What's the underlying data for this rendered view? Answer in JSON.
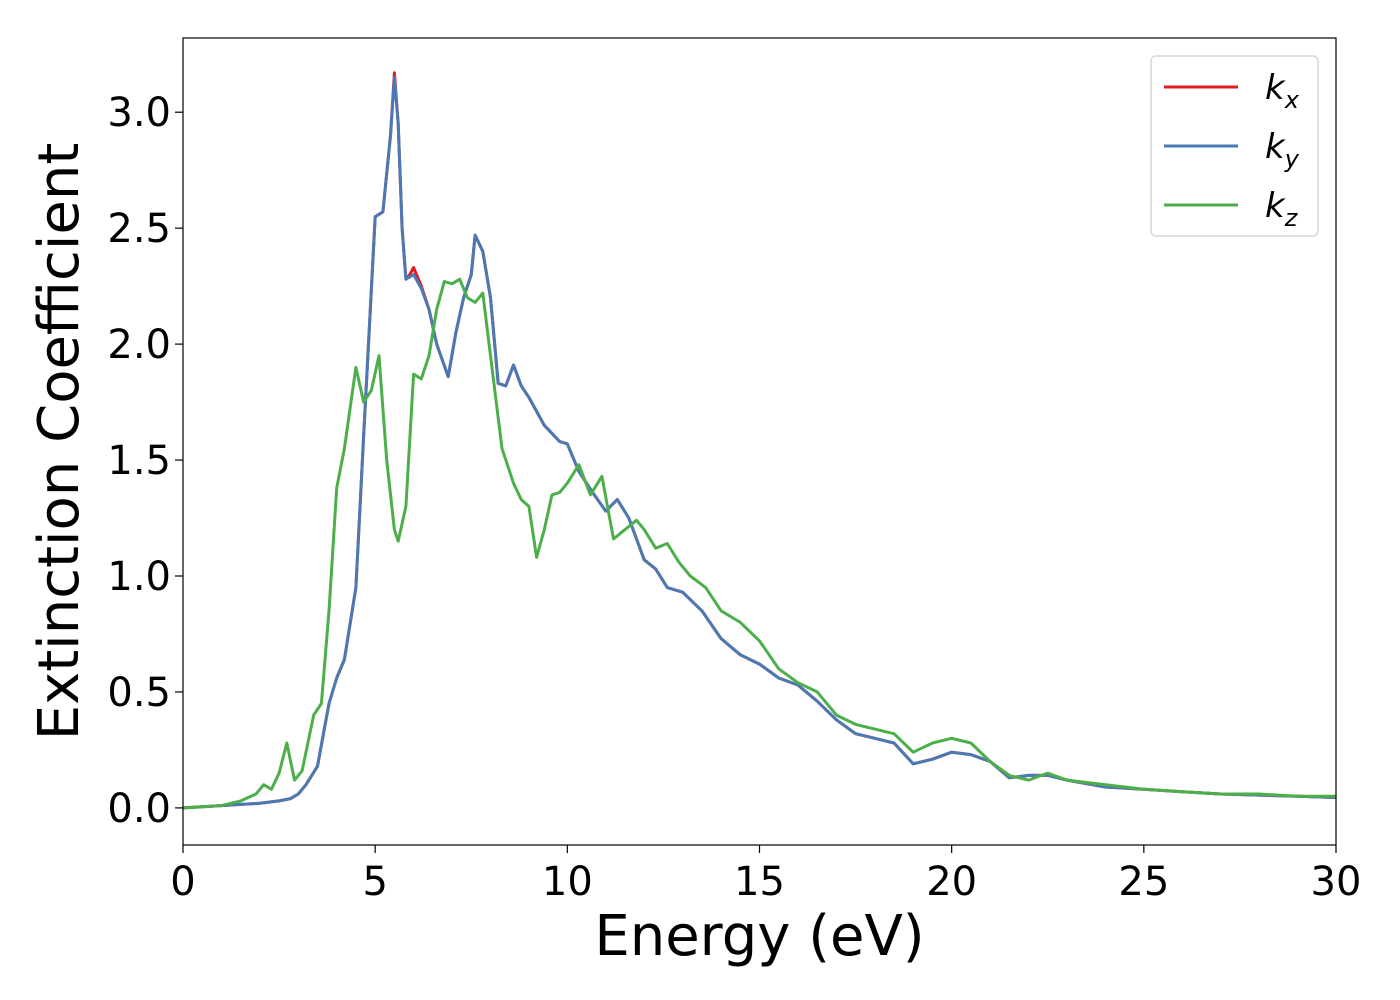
{
  "chart_data": {
    "type": "line",
    "xlabel": "Energy (eV)",
    "ylabel": "Extinction Coefficient",
    "xlim": [
      0,
      30
    ],
    "ylim": [
      -0.16,
      3.32
    ],
    "xticks": [
      0,
      5,
      10,
      15,
      20,
      25,
      30
    ],
    "xtick_labels": [
      "0",
      "5",
      "10",
      "15",
      "20",
      "25",
      "30"
    ],
    "yticks": [
      0.0,
      0.5,
      1.0,
      1.5,
      2.0,
      2.5,
      3.0
    ],
    "ytick_labels": [
      "0.0",
      "0.5",
      "1.0",
      "1.5",
      "2.0",
      "2.5",
      "3.0"
    ],
    "grid": false,
    "legend_position": "top-right",
    "series": [
      {
        "name": "k_x",
        "label_main": "k",
        "label_sub": "x",
        "color": "#e41a1c",
        "x": [
          0,
          1,
          1.5,
          2,
          2.5,
          2.8,
          3,
          3.2,
          3.5,
          3.8,
          4,
          4.2,
          4.5,
          4.7,
          5,
          5.2,
          5.4,
          5.5,
          5.6,
          5.7,
          5.8,
          5.9,
          6,
          6.2,
          6.4,
          6.6,
          6.9,
          7.1,
          7.3,
          7.5,
          7.6,
          7.8,
          8,
          8.2,
          8.4,
          8.6,
          8.8,
          9,
          9.4,
          9.8,
          10,
          10.3,
          10.7,
          11,
          11.3,
          11.6,
          12,
          12.3,
          12.6,
          13,
          13.5,
          14,
          14.5,
          15,
          15.5,
          16,
          16.5,
          17,
          17.5,
          18,
          18.5,
          19,
          19.5,
          20,
          20.5,
          21,
          21.5,
          22,
          22.5,
          23,
          24,
          25,
          26,
          27,
          28,
          29,
          30
        ],
        "y": [
          0.0,
          0.01,
          0.015,
          0.02,
          0.03,
          0.04,
          0.06,
          0.1,
          0.18,
          0.45,
          0.56,
          0.64,
          0.95,
          1.6,
          2.55,
          2.57,
          2.9,
          3.17,
          2.95,
          2.5,
          2.28,
          2.3,
          2.33,
          2.25,
          2.15,
          2.0,
          1.86,
          2.05,
          2.2,
          2.3,
          2.47,
          2.4,
          2.2,
          1.83,
          1.82,
          1.91,
          1.82,
          1.77,
          1.65,
          1.58,
          1.57,
          1.45,
          1.35,
          1.28,
          1.33,
          1.25,
          1.07,
          1.03,
          0.95,
          0.93,
          0.85,
          0.73,
          0.66,
          0.62,
          0.56,
          0.53,
          0.46,
          0.38,
          0.32,
          0.3,
          0.28,
          0.19,
          0.21,
          0.24,
          0.23,
          0.2,
          0.13,
          0.14,
          0.14,
          0.12,
          0.09,
          0.08,
          0.07,
          0.06,
          0.055,
          0.05,
          0.045
        ]
      },
      {
        "name": "k_y",
        "label_main": "k",
        "label_sub": "y",
        "color": "#4a7ab5",
        "x": [
          0,
          1,
          1.5,
          2,
          2.5,
          2.8,
          3,
          3.2,
          3.5,
          3.8,
          4,
          4.2,
          4.5,
          4.7,
          5,
          5.2,
          5.4,
          5.5,
          5.6,
          5.7,
          5.8,
          5.9,
          6,
          6.2,
          6.4,
          6.6,
          6.9,
          7.1,
          7.3,
          7.5,
          7.6,
          7.8,
          8,
          8.2,
          8.4,
          8.6,
          8.8,
          9,
          9.4,
          9.8,
          10,
          10.3,
          10.7,
          11,
          11.3,
          11.6,
          12,
          12.3,
          12.6,
          13,
          13.5,
          14,
          14.5,
          15,
          15.5,
          16,
          16.5,
          17,
          17.5,
          18,
          18.5,
          19,
          19.5,
          20,
          20.5,
          21,
          21.5,
          22,
          22.5,
          23,
          24,
          25,
          26,
          27,
          28,
          29,
          30
        ],
        "y": [
          0.0,
          0.01,
          0.015,
          0.02,
          0.03,
          0.04,
          0.06,
          0.1,
          0.18,
          0.45,
          0.56,
          0.64,
          0.95,
          1.6,
          2.55,
          2.57,
          2.9,
          3.15,
          2.95,
          2.5,
          2.28,
          2.29,
          2.3,
          2.24,
          2.15,
          2.0,
          1.86,
          2.05,
          2.2,
          2.3,
          2.47,
          2.4,
          2.2,
          1.83,
          1.82,
          1.91,
          1.82,
          1.77,
          1.65,
          1.58,
          1.57,
          1.45,
          1.35,
          1.28,
          1.33,
          1.25,
          1.07,
          1.03,
          0.95,
          0.93,
          0.85,
          0.73,
          0.66,
          0.62,
          0.56,
          0.53,
          0.46,
          0.38,
          0.32,
          0.3,
          0.28,
          0.19,
          0.21,
          0.24,
          0.23,
          0.2,
          0.13,
          0.14,
          0.14,
          0.12,
          0.09,
          0.08,
          0.07,
          0.06,
          0.055,
          0.05,
          0.045
        ]
      },
      {
        "name": "k_z",
        "label_main": "k",
        "label_sub": "z",
        "color": "#4daf4a",
        "x": [
          0,
          1,
          1.5,
          1.9,
          2.1,
          2.3,
          2.5,
          2.7,
          2.9,
          3.1,
          3.4,
          3.6,
          3.8,
          4,
          4.2,
          4.5,
          4.7,
          4.9,
          5.1,
          5.3,
          5.5,
          5.6,
          5.8,
          6,
          6.2,
          6.4,
          6.6,
          6.8,
          7.0,
          7.2,
          7.4,
          7.6,
          7.8,
          8.0,
          8.3,
          8.6,
          8.8,
          9.0,
          9.2,
          9.4,
          9.6,
          9.8,
          10,
          10.3,
          10.6,
          10.9,
          11.2,
          11.5,
          11.8,
          12,
          12.3,
          12.6,
          12.9,
          13.2,
          13.6,
          14,
          14.5,
          15,
          15.5,
          16,
          16.5,
          17,
          17.5,
          18,
          18.5,
          19,
          19.5,
          20,
          20.5,
          21,
          21.5,
          22,
          22.5,
          23,
          24,
          25,
          26,
          27,
          28,
          29,
          30
        ],
        "y": [
          0.0,
          0.01,
          0.03,
          0.06,
          0.1,
          0.08,
          0.15,
          0.28,
          0.12,
          0.16,
          0.4,
          0.45,
          0.85,
          1.38,
          1.55,
          1.9,
          1.75,
          1.8,
          1.95,
          1.5,
          1.2,
          1.15,
          1.3,
          1.87,
          1.85,
          1.95,
          2.15,
          2.27,
          2.26,
          2.28,
          2.2,
          2.18,
          2.22,
          1.95,
          1.55,
          1.4,
          1.33,
          1.3,
          1.08,
          1.2,
          1.35,
          1.36,
          1.4,
          1.48,
          1.35,
          1.43,
          1.16,
          1.2,
          1.24,
          1.2,
          1.12,
          1.14,
          1.06,
          1.0,
          0.95,
          0.85,
          0.8,
          0.72,
          0.6,
          0.54,
          0.5,
          0.4,
          0.36,
          0.34,
          0.32,
          0.24,
          0.28,
          0.3,
          0.28,
          0.2,
          0.14,
          0.12,
          0.15,
          0.12,
          0.1,
          0.08,
          0.07,
          0.06,
          0.06,
          0.05,
          0.05
        ]
      }
    ]
  }
}
